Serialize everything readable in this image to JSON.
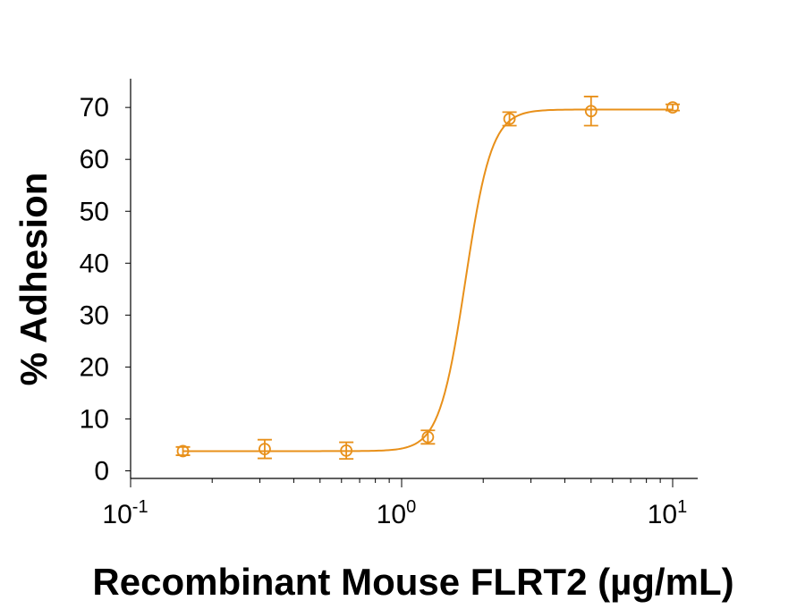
{
  "chart_data": {
    "type": "scatter",
    "xlabel": "Recombinant Mouse FLRT2 (µg/mL)",
    "ylabel": "% Adhesion",
    "x_scale": "log",
    "xlim": [
      0.1,
      12
    ],
    "ylim": [
      -1,
      75
    ],
    "x_ticks": [
      {
        "value": 0.1,
        "base": "10",
        "exp": "-1"
      },
      {
        "value": 1,
        "base": "10",
        "exp": "0"
      },
      {
        "value": 10,
        "base": "10",
        "exp": "1"
      }
    ],
    "y_ticks": [
      0,
      10,
      20,
      30,
      40,
      50,
      60,
      70
    ],
    "color": "#E8901A",
    "grid": false,
    "series": [
      {
        "points": [
          {
            "x": 0.156,
            "y": 3.8,
            "err": 0.8
          },
          {
            "x": 0.3125,
            "y": 4.2,
            "err": 1.8
          },
          {
            "x": 0.625,
            "y": 3.9,
            "err": 1.6
          },
          {
            "x": 1.25,
            "y": 6.5,
            "err": 1.3
          },
          {
            "x": 2.5,
            "y": 67.8,
            "err": 1.3
          },
          {
            "x": 5,
            "y": 69.3,
            "err": 2.8
          },
          {
            "x": 10,
            "y": 70.0,
            "err": 0.6
          }
        ],
        "fit": {
          "bottom": 3.8,
          "top": 69.6,
          "ec50": 1.72,
          "hill": 9
        }
      }
    ]
  }
}
